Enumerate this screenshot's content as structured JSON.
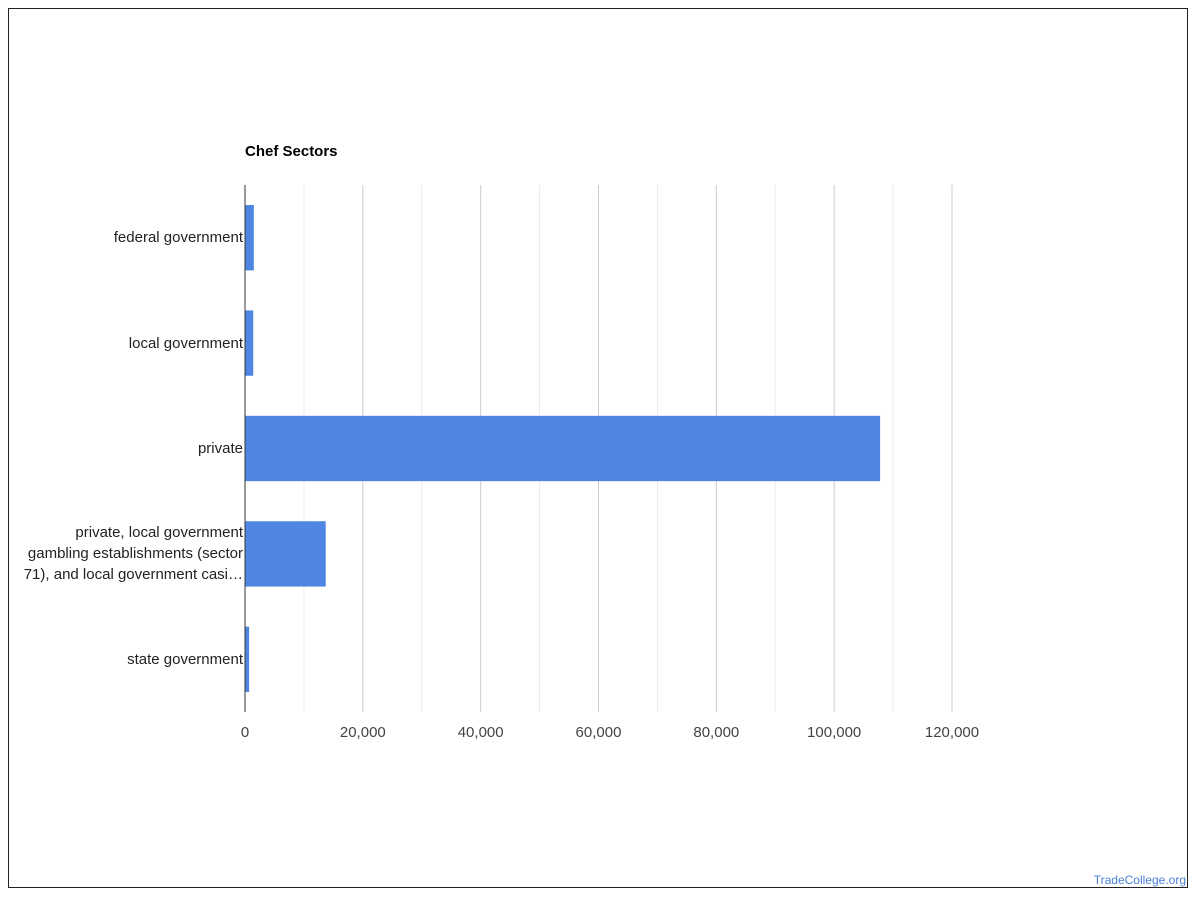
{
  "chart_data": {
    "type": "bar",
    "orientation": "horizontal",
    "title": "Chef Sectors",
    "categories": [
      "federal government",
      "local government",
      "private",
      "private, local government gambling establishments (sector 71), and local government casi…",
      "state government"
    ],
    "category_lines": [
      [
        "federal government"
      ],
      [
        "local government"
      ],
      [
        "private"
      ],
      [
        "private, local government",
        "gambling establishments (sector",
        "71), and local government casi…"
      ],
      [
        "state government"
      ]
    ],
    "values": [
      1500,
      1400,
      107800,
      13700,
      700
    ],
    "xlim": [
      0,
      120000
    ],
    "xticks": [
      0,
      20000,
      40000,
      60000,
      80000,
      100000,
      120000
    ],
    "xtick_labels": [
      "0",
      "20,000",
      "40,000",
      "60,000",
      "80,000",
      "100,000",
      "120,000"
    ],
    "grid": true,
    "bar_color": "#5086e3"
  },
  "footer": {
    "source": "TradeCollege.org"
  }
}
